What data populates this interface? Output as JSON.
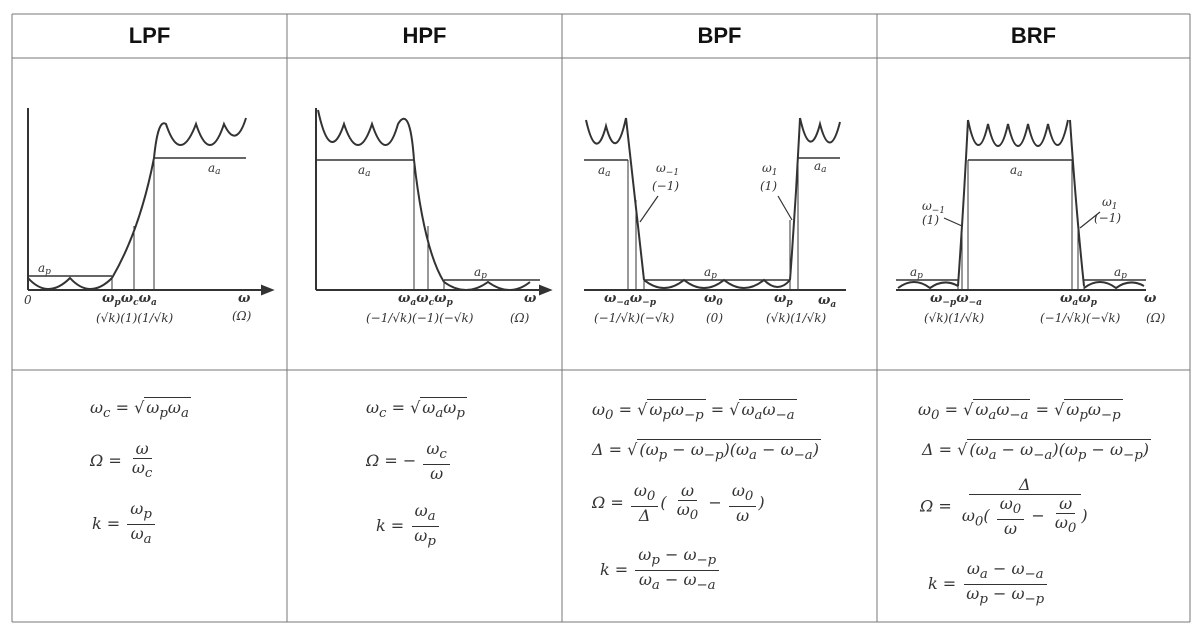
{
  "headers": {
    "lpf": "LPF",
    "hpf": "HPF",
    "bpf": "BPF",
    "brf": "BRF"
  },
  "lpf": {
    "ap": "a_p",
    "aa": "a_a",
    "zero": "0",
    "axis_w": "ω",
    "axis_W": "(Ω)",
    "ticks": "ω_p ω_c ω_a",
    "norm": "(√k)(1)(1/√k)",
    "f1": "ω_c = √ω_pω_a",
    "f2_lhs": "Ω =",
    "f2_num": "ω",
    "f2_den": "ω_c",
    "f3_lhs": "k =",
    "f3_num": "ω_p",
    "f3_den": "ω_a"
  },
  "hpf": {
    "ap": "a_p",
    "aa": "a_a",
    "axis_w": "ω",
    "axis_W": "(Ω)",
    "ticks": "ω_a ω_c ω_p",
    "norm": "(−1/√k)(−1)(−√k)",
    "f1": "ω_c = √ω_aω_p",
    "f2_lhs": "Ω = −",
    "f2_num": "ω_c",
    "f2_den": "ω",
    "f3_lhs": "k =",
    "f3_num": "ω_a",
    "f3_den": "ω_p"
  },
  "bpf": {
    "ap": "a_p",
    "aa1": "a_a",
    "aa2": "a_a",
    "wm1": "ω_−1",
    "m1": "(−1)",
    "w1": "ω_1",
    "p1": "(1)",
    "ticks_left": "ω_−a ω_−p",
    "w0": "ω_0",
    "ticks_right": "ω_p",
    "wa": "ω_a",
    "norm_left": "(−1/√k)(−√k)",
    "norm_mid": "(0)",
    "norm_right": "(√k)(1/√k)",
    "f1": "ω_0 = √ω_pω_−p = √ω_aω_−a",
    "f2": "Δ = √(ω_p − ω_−p)(ω_a − ω_−a)",
    "f3_lhs": "Ω =",
    "f3_a_num": "ω_0",
    "f3_a_den": "Δ",
    "f3_b_num": "ω",
    "f3_b_den": "ω_0",
    "f3_c_num": "ω_0",
    "f3_c_den": "ω",
    "f4_lhs": "k =",
    "f4_num": "ω_p − ω_−p",
    "f4_den": "ω_a − ω_−a"
  },
  "brf": {
    "ap1": "a_p",
    "ap2": "a_p",
    "aa": "a_a",
    "wm1": "ω_−1",
    "p1": "(1)",
    "w1": "ω_1",
    "m1": "(−1)",
    "ticks_left": "ω_−p ω_−a",
    "ticks_right": "ω_a ω_p",
    "axis_w": "ω",
    "norm_left": "(√k)(1/√k)",
    "norm_right": "(−1/√k)(−√k)",
    "axis_W": "(Ω)",
    "f1": "ω_0 = √ω_aω_−a = √ω_pω_−p",
    "f2": "Δ = √(ω_a − ω_−a)(ω_p − ω_−p)",
    "f3_lhs": "Ω =",
    "f3_num": "Δ",
    "f3_den_a": "ω_0",
    "f3_den_b_num": "ω_0",
    "f3_den_b_den": "ω",
    "f3_den_c_num": "ω",
    "f3_den_c_den": "ω_0",
    "f4_lhs": "k =",
    "f4_num": "ω_a − ω_−a",
    "f4_den": "ω_p − ω_−p"
  }
}
